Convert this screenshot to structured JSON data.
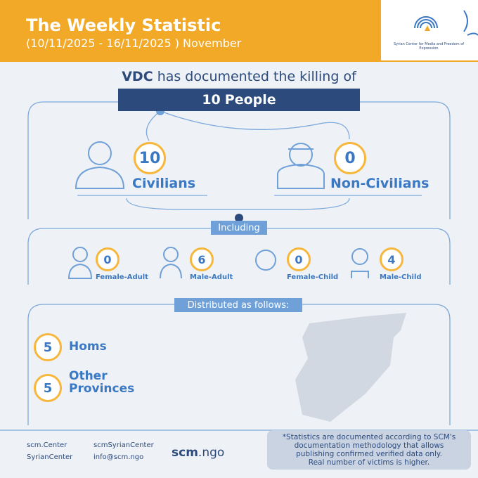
{
  "header": {
    "title": "The Weekly Statistic",
    "subtitle": "(10/11/2025 - 16/11/2025 ) November",
    "logo_text": "Syrian Center for Media and Freedom of Expression"
  },
  "intro": {
    "org": "VDC",
    "text": "has documented the killing of",
    "total": 10,
    "total_unit": "People"
  },
  "groups": [
    {
      "count": 10,
      "label": "Civilians"
    },
    {
      "count": 0,
      "label": "Non-Civilians"
    }
  ],
  "including_label": "Including",
  "breakdown": [
    {
      "count": 0,
      "label": "Female-Adult"
    },
    {
      "count": 6,
      "label": "Male-Adult"
    },
    {
      "count": 0,
      "label": "Female-Child"
    },
    {
      "count": 4,
      "label": "Male-Child"
    }
  ],
  "distribution_label": "Distributed as follows:",
  "provinces": [
    {
      "count": 5,
      "label": "Homs"
    },
    {
      "count": 5,
      "label": "Other Provinces"
    }
  ],
  "footer": {
    "social": [
      "scm.Center",
      "scmSyrianCenter",
      "SyrianCenter",
      "info@scm.ngo"
    ],
    "site_prefix": "scm",
    "site_suffix": ".ngo",
    "note": [
      "*Statistics are documented according to SCM's",
      "documentation methodology that allows",
      "publishing confirmed verified data only.",
      "Real number of victims is higher."
    ]
  }
}
